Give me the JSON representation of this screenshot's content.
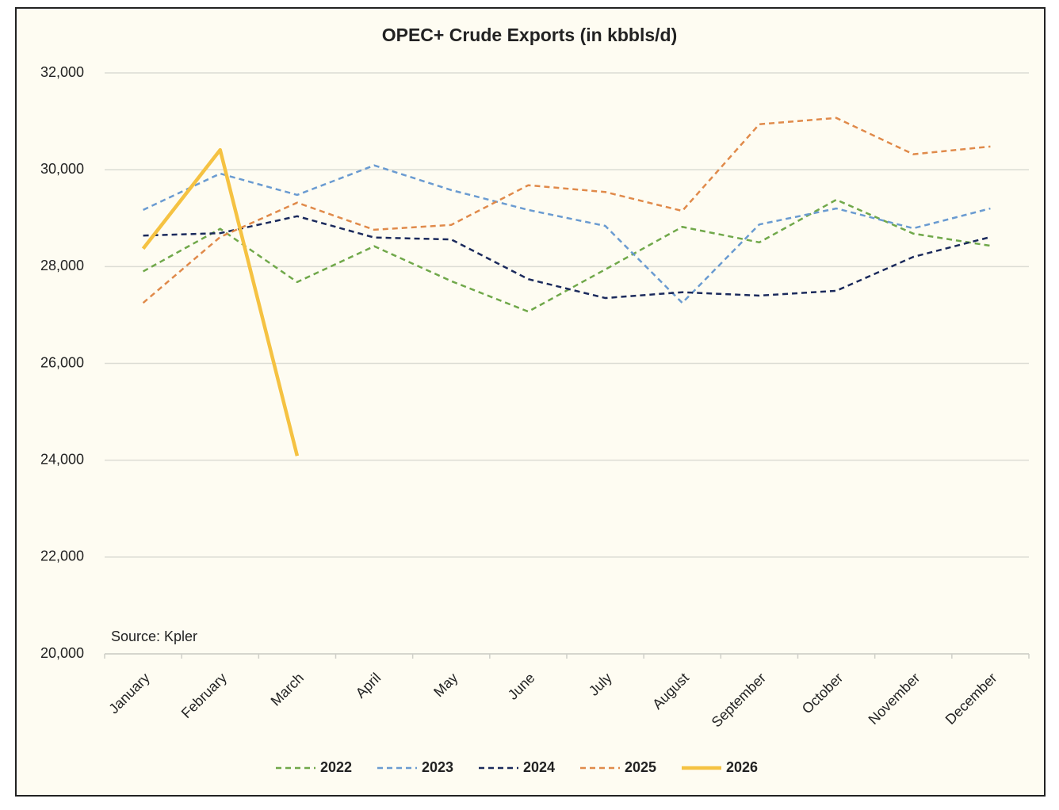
{
  "chart_data": {
    "type": "line",
    "title": "OPEC+ Crude Exports (in kbbls/d)",
    "annotation": "Source: Kpler",
    "categories": [
      "January",
      "February",
      "March",
      "April",
      "May",
      "June",
      "July",
      "August",
      "September",
      "October",
      "November",
      "December"
    ],
    "series": [
      {
        "name": "2022",
        "color": "#70a84a",
        "dashed": true,
        "values": [
          27900,
          28780,
          27680,
          28420,
          27700,
          27070,
          27940,
          28820,
          28500,
          29380,
          28680,
          28430
        ]
      },
      {
        "name": "2023",
        "color": "#6a9bd1",
        "dashed": true,
        "values": [
          29170,
          29920,
          29480,
          30090,
          29580,
          29170,
          28840,
          27250,
          28870,
          29200,
          28790,
          29200
        ]
      },
      {
        "name": "2024",
        "color": "#1b2a5c",
        "dashed": true,
        "values": [
          28640,
          28690,
          29040,
          28600,
          28560,
          27740,
          27350,
          27470,
          27400,
          27500,
          28200,
          28610
        ]
      },
      {
        "name": "2025",
        "color": "#e08a4a",
        "dashed": true,
        "values": [
          27250,
          28610,
          29320,
          28760,
          28860,
          29680,
          29540,
          29150,
          30940,
          31070,
          30320,
          30480
        ]
      },
      {
        "name": "2026",
        "color": "#f5c242",
        "dashed": false,
        "values": [
          28370,
          30410,
          24090,
          null,
          null,
          null,
          null,
          null,
          null,
          null,
          null,
          null
        ]
      }
    ],
    "ylim": [
      20000,
      32000
    ],
    "yticks": [
      {
        "value": 20000,
        "label": "20,000"
      },
      {
        "value": 22000,
        "label": "22,000"
      },
      {
        "value": 24000,
        "label": "24,000"
      },
      {
        "value": 26000,
        "label": "26,000"
      },
      {
        "value": 28000,
        "label": "28,000"
      },
      {
        "value": 30000,
        "label": "30,000"
      },
      {
        "value": 32000,
        "label": "32,000"
      }
    ],
    "grid": true,
    "legend": "bottom"
  }
}
